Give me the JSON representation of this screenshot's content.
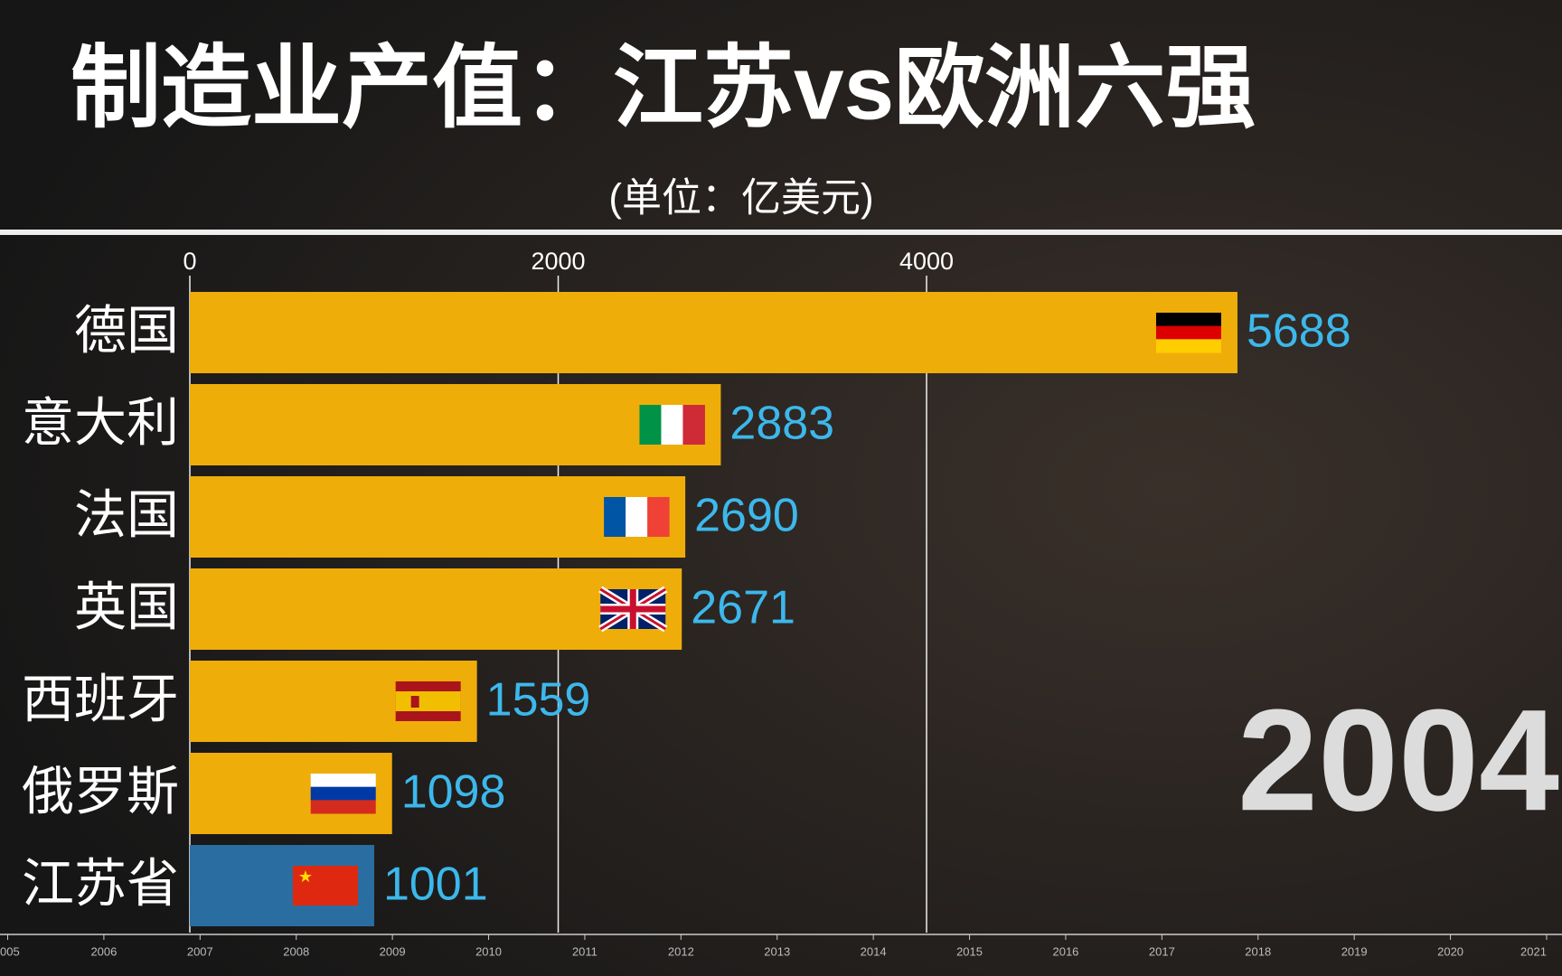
{
  "chart_data": {
    "type": "bar",
    "orientation": "horizontal",
    "title": "制造业产值：江苏vs欧洲六强",
    "subtitle": "(单位：亿美元)",
    "categories": [
      "德国",
      "意大利",
      "法国",
      "英国",
      "西班牙",
      "俄罗斯",
      "江苏省"
    ],
    "values": [
      5688,
      2883,
      2690,
      2671,
      1559,
      1098,
      1001
    ],
    "colors": [
      "#efad0a",
      "#efad0a",
      "#efad0a",
      "#efad0a",
      "#efad0a",
      "#efad0a",
      "#2a6ea1"
    ],
    "xlim": [
      0,
      7450
    ],
    "xticks": [
      0,
      2000,
      4000
    ],
    "grid": true,
    "year": "2004",
    "timeline_lim": [
      2004.92,
      2021.16
    ],
    "timeline_ticks": [
      {
        "value": 2005,
        "label": "005"
      },
      2006,
      2007,
      2008,
      2009,
      2010,
      2011,
      2012,
      2013,
      2014,
      2015,
      2016,
      2017,
      2018,
      2019,
      2020,
      {
        "value": 2021,
        "label": "2021"
      }
    ]
  }
}
